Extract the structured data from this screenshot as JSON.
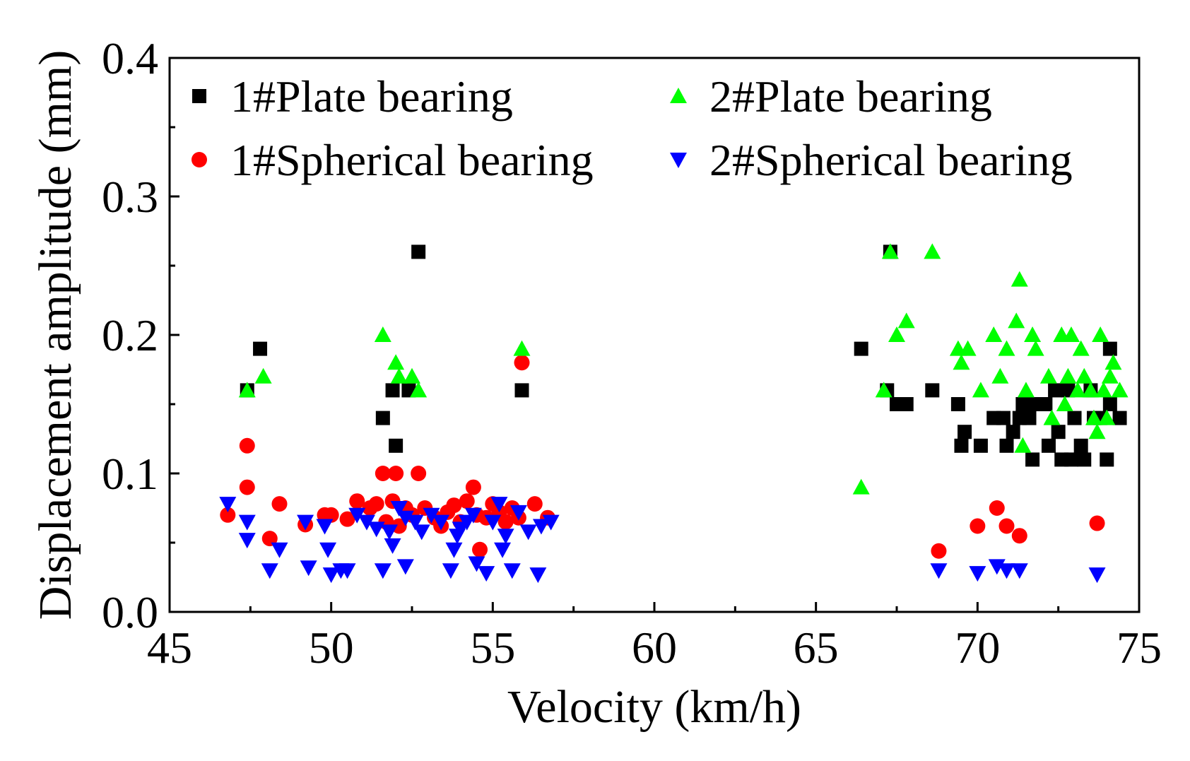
{
  "chart_data": {
    "type": "scatter",
    "title": "",
    "xlabel": "Velocity (km/h)",
    "ylabel": "Displacement amplitude (mm)",
    "xlim": [
      45,
      75
    ],
    "ylim": [
      0.0,
      0.4
    ],
    "xticks": [
      45,
      50,
      55,
      60,
      65,
      70,
      75
    ],
    "yticks": [
      0.0,
      0.1,
      0.2,
      0.3,
      0.4
    ],
    "xtick_labels": [
      "45",
      "50",
      "55",
      "60",
      "65",
      "70",
      "75"
    ],
    "ytick_labels": [
      "0.0",
      "0.1",
      "0.2",
      "0.3",
      "0.4"
    ],
    "grid": false,
    "legend_position": "top",
    "series": [
      {
        "name": "1#Plate bearing",
        "marker": "square",
        "color": "#000000",
        "points": [
          [
            47.4,
            0.16
          ],
          [
            47.8,
            0.19
          ],
          [
            51.6,
            0.14
          ],
          [
            51.9,
            0.16
          ],
          [
            52.0,
            0.12
          ],
          [
            52.4,
            0.16
          ],
          [
            52.7,
            0.26
          ],
          [
            55.9,
            0.16
          ],
          [
            66.4,
            0.19
          ],
          [
            67.2,
            0.16
          ],
          [
            67.3,
            0.26
          ],
          [
            67.5,
            0.15
          ],
          [
            67.8,
            0.15
          ],
          [
            68.6,
            0.16
          ],
          [
            69.4,
            0.15
          ],
          [
            69.5,
            0.12
          ],
          [
            69.6,
            0.13
          ],
          [
            70.1,
            0.12
          ],
          [
            70.5,
            0.14
          ],
          [
            70.8,
            0.14
          ],
          [
            70.9,
            0.12
          ],
          [
            71.1,
            0.13
          ],
          [
            71.3,
            0.14
          ],
          [
            71.4,
            0.15
          ],
          [
            71.6,
            0.14
          ],
          [
            71.7,
            0.11
          ],
          [
            71.8,
            0.15
          ],
          [
            72.1,
            0.15
          ],
          [
            72.2,
            0.12
          ],
          [
            72.4,
            0.16
          ],
          [
            72.5,
            0.13
          ],
          [
            72.6,
            0.11
          ],
          [
            72.8,
            0.16
          ],
          [
            72.9,
            0.11
          ],
          [
            73.0,
            0.14
          ],
          [
            73.2,
            0.12
          ],
          [
            73.3,
            0.11
          ],
          [
            73.5,
            0.16
          ],
          [
            73.6,
            0.14
          ],
          [
            73.8,
            0.14
          ],
          [
            74.0,
            0.11
          ],
          [
            74.1,
            0.15
          ],
          [
            74.1,
            0.19
          ],
          [
            74.4,
            0.14
          ]
        ]
      },
      {
        "name": "1#Spherical bearing",
        "marker": "circle",
        "color": "#ff0000",
        "points": [
          [
            46.8,
            0.07
          ],
          [
            47.4,
            0.12
          ],
          [
            47.4,
            0.09
          ],
          [
            48.1,
            0.053
          ],
          [
            48.4,
            0.078
          ],
          [
            49.2,
            0.063
          ],
          [
            49.8,
            0.07
          ],
          [
            50.0,
            0.07
          ],
          [
            50.5,
            0.067
          ],
          [
            50.8,
            0.08
          ],
          [
            51.2,
            0.075
          ],
          [
            51.4,
            0.078
          ],
          [
            51.6,
            0.1
          ],
          [
            51.7,
            0.065
          ],
          [
            51.9,
            0.08
          ],
          [
            52.0,
            0.1
          ],
          [
            52.1,
            0.062
          ],
          [
            52.3,
            0.075
          ],
          [
            52.5,
            0.07
          ],
          [
            52.7,
            0.1
          ],
          [
            52.9,
            0.075
          ],
          [
            53.2,
            0.068
          ],
          [
            53.4,
            0.062
          ],
          [
            53.6,
            0.072
          ],
          [
            53.8,
            0.077
          ],
          [
            54.0,
            0.065
          ],
          [
            54.2,
            0.08
          ],
          [
            54.4,
            0.09
          ],
          [
            54.5,
            0.07
          ],
          [
            54.6,
            0.045
          ],
          [
            54.8,
            0.068
          ],
          [
            55.0,
            0.078
          ],
          [
            55.2,
            0.072
          ],
          [
            55.4,
            0.065
          ],
          [
            55.6,
            0.075
          ],
          [
            55.8,
            0.068
          ],
          [
            55.9,
            0.18
          ],
          [
            56.3,
            0.078
          ],
          [
            56.7,
            0.068
          ],
          [
            68.8,
            0.044
          ],
          [
            70.0,
            0.062
          ],
          [
            70.6,
            0.075
          ],
          [
            70.9,
            0.062
          ],
          [
            71.3,
            0.055
          ],
          [
            73.7,
            0.064
          ]
        ]
      },
      {
        "name": "2#Plate bearing",
        "marker": "triangle-up",
        "color": "#00ff00",
        "points": [
          [
            47.4,
            0.16
          ],
          [
            47.9,
            0.17
          ],
          [
            51.6,
            0.2
          ],
          [
            52.0,
            0.18
          ],
          [
            52.1,
            0.17
          ],
          [
            52.5,
            0.17
          ],
          [
            52.7,
            0.16
          ],
          [
            55.9,
            0.19
          ],
          [
            66.4,
            0.09
          ],
          [
            67.1,
            0.16
          ],
          [
            67.3,
            0.26
          ],
          [
            67.5,
            0.2
          ],
          [
            67.8,
            0.21
          ],
          [
            68.6,
            0.26
          ],
          [
            69.4,
            0.19
          ],
          [
            69.5,
            0.18
          ],
          [
            69.7,
            0.19
          ],
          [
            70.1,
            0.16
          ],
          [
            70.5,
            0.2
          ],
          [
            70.7,
            0.17
          ],
          [
            70.9,
            0.19
          ],
          [
            71.2,
            0.21
          ],
          [
            71.3,
            0.24
          ],
          [
            71.4,
            0.12
          ],
          [
            71.5,
            0.16
          ],
          [
            71.7,
            0.2
          ],
          [
            71.8,
            0.19
          ],
          [
            72.2,
            0.17
          ],
          [
            72.3,
            0.14
          ],
          [
            72.6,
            0.2
          ],
          [
            72.7,
            0.15
          ],
          [
            72.8,
            0.17
          ],
          [
            72.9,
            0.2
          ],
          [
            73.1,
            0.16
          ],
          [
            73.2,
            0.19
          ],
          [
            73.3,
            0.17
          ],
          [
            73.5,
            0.16
          ],
          [
            73.6,
            0.14
          ],
          [
            73.7,
            0.13
          ],
          [
            73.8,
            0.2
          ],
          [
            73.9,
            0.16
          ],
          [
            74.0,
            0.14
          ],
          [
            74.1,
            0.17
          ],
          [
            74.2,
            0.18
          ],
          [
            74.4,
            0.16
          ]
        ]
      },
      {
        "name": "2#Spherical bearing",
        "marker": "triangle-down",
        "color": "#0000ff",
        "points": [
          [
            46.8,
            0.078
          ],
          [
            47.4,
            0.065
          ],
          [
            47.4,
            0.052
          ],
          [
            48.1,
            0.03
          ],
          [
            48.4,
            0.045
          ],
          [
            49.2,
            0.065
          ],
          [
            49.3,
            0.032
          ],
          [
            49.8,
            0.062
          ],
          [
            49.9,
            0.045
          ],
          [
            50.0,
            0.027
          ],
          [
            50.3,
            0.03
          ],
          [
            50.5,
            0.03
          ],
          [
            50.8,
            0.07
          ],
          [
            51.1,
            0.065
          ],
          [
            51.4,
            0.06
          ],
          [
            51.6,
            0.03
          ],
          [
            51.8,
            0.058
          ],
          [
            51.9,
            0.048
          ],
          [
            52.1,
            0.075
          ],
          [
            52.3,
            0.068
          ],
          [
            52.3,
            0.033
          ],
          [
            52.6,
            0.065
          ],
          [
            52.8,
            0.058
          ],
          [
            53.1,
            0.07
          ],
          [
            53.4,
            0.065
          ],
          [
            53.7,
            0.03
          ],
          [
            53.8,
            0.045
          ],
          [
            53.9,
            0.055
          ],
          [
            54.0,
            0.06
          ],
          [
            54.2,
            0.065
          ],
          [
            54.4,
            0.07
          ],
          [
            54.5,
            0.035
          ],
          [
            54.8,
            0.028
          ],
          [
            55.0,
            0.065
          ],
          [
            55.2,
            0.078
          ],
          [
            55.3,
            0.045
          ],
          [
            55.4,
            0.055
          ],
          [
            55.6,
            0.03
          ],
          [
            55.8,
            0.072
          ],
          [
            56.1,
            0.058
          ],
          [
            56.5,
            0.062
          ],
          [
            56.4,
            0.027
          ],
          [
            56.8,
            0.065
          ],
          [
            68.8,
            0.03
          ],
          [
            70.0,
            0.028
          ],
          [
            70.6,
            0.033
          ],
          [
            70.9,
            0.03
          ],
          [
            71.3,
            0.03
          ],
          [
            73.7,
            0.027
          ]
        ]
      }
    ]
  }
}
